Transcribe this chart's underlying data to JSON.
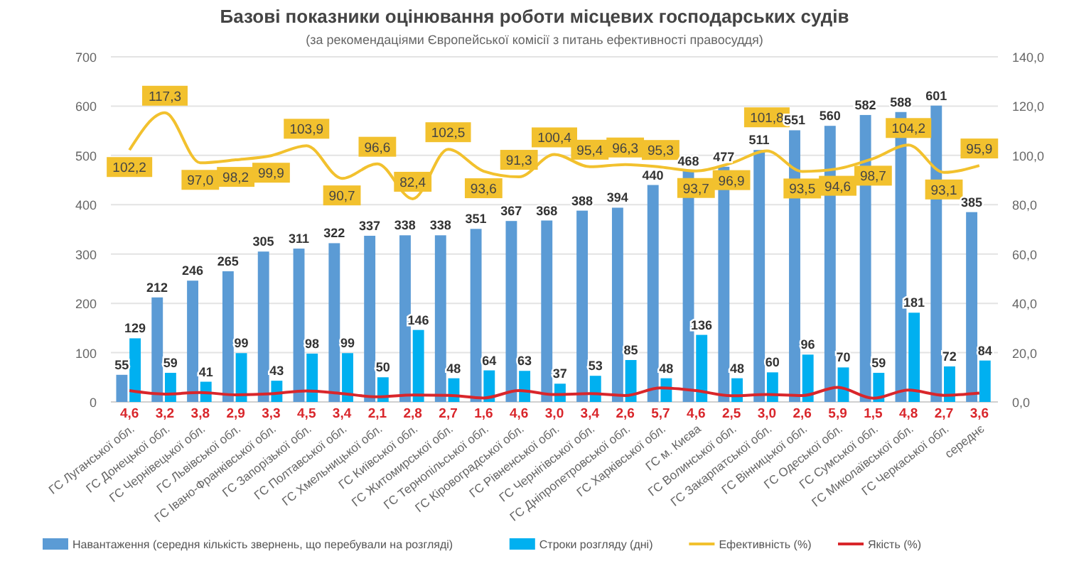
{
  "chart_data": {
    "type": "bar",
    "title": "Базові показники оцінювання роботи місцевих господарських судів",
    "subtitle": "(за рекомендаціями Європейської комісії з питань ефективності правосуддя)",
    "categories": [
      "ГС Луганської обл.",
      "ГС Донецької обл.",
      "ГС Чернівецької обл.",
      "ГС Львівської обл.",
      "ГС Івано-Франківської обл.",
      "ГС Запорізької обл.",
      "ГС Полтавської обл.",
      "ГС Хмельницької обл.",
      "ГС Київської обл.",
      "ГС Житомирської обл.",
      "ГС Тернопільської обл.",
      "ГС Кіровоградської обл.",
      "ГС Рівненської обл.",
      "ГС Чернігівської обл.",
      "ГС Дніпропетровської обл.",
      "ГС Харківської обл.",
      "ГС м. Києва",
      "ГС Волинської обл.",
      "ГС Закарпатської обл.",
      "ГС Вінницької обл.",
      "ГС Одеської обл.",
      "ГС Сумської обл.",
      "ГС Миколаївської обл.",
      "ГС Черкаської обл.",
      "середнє"
    ],
    "series": [
      {
        "name": "Навантаження (середня кількість звернень, що перебували на розгляді)",
        "color": "#5b9bd5",
        "values": [
          55,
          212,
          246,
          265,
          305,
          311,
          322,
          337,
          338,
          338,
          351,
          367,
          368,
          388,
          394,
          440,
          468,
          477,
          511,
          551,
          560,
          582,
          588,
          601,
          385
        ]
      },
      {
        "name": "Строки розгляду (дні)",
        "color": "#00b0f0",
        "values": [
          129,
          59,
          41,
          99,
          43,
          98,
          99,
          50,
          146,
          48,
          64,
          63,
          37,
          53,
          85,
          48,
          136,
          48,
          60,
          96,
          70,
          59,
          181,
          72,
          84
        ]
      },
      {
        "name": "Ефективність (%)",
        "color": "#f2c12e",
        "type": "line",
        "axis": "y2",
        "values": [
          102.2,
          117.3,
          97.0,
          98.2,
          99.9,
          103.9,
          90.7,
          96.6,
          82.4,
          102.5,
          93.6,
          91.3,
          100.4,
          95.4,
          96.3,
          95.3,
          93.7,
          96.9,
          101.8,
          93.5,
          94.6,
          98.7,
          104.2,
          93.1,
          95.9
        ],
        "value_labels": [
          "102,2",
          "117,3",
          "97,0",
          "98,2",
          "99,9",
          "103,9",
          "90,7",
          "96,6",
          "82,4",
          "102,5",
          "93,6",
          "91,3",
          "100,4",
          "95,4",
          "96,3",
          "95,3",
          "93,7",
          "96,9",
          "101,8",
          "93,5",
          "94,6",
          "98,7",
          "104,2",
          "93,1",
          "95,9"
        ]
      },
      {
        "name": "Якість (%)",
        "color": "#d9262b",
        "type": "line",
        "axis": "y2",
        "values": [
          4.6,
          3.2,
          3.8,
          2.9,
          3.3,
          4.5,
          3.4,
          2.1,
          2.8,
          2.7,
          1.6,
          4.6,
          3.0,
          3.4,
          2.6,
          5.7,
          4.6,
          2.5,
          3.0,
          2.6,
          5.9,
          1.5,
          4.8,
          2.7,
          3.6
        ],
        "value_labels": [
          "4,6",
          "3,2",
          "3,8",
          "2,9",
          "3,3",
          "4,5",
          "3,4",
          "2,1",
          "2,8",
          "2,7",
          "1,6",
          "4,6",
          "3,0",
          "3,4",
          "2,6",
          "5,7",
          "4,6",
          "2,5",
          "3,0",
          "2,6",
          "5,9",
          "1,5",
          "4,8",
          "2,7",
          "3,6"
        ]
      }
    ],
    "data_labels": true,
    "ylim": [
      0,
      700
    ],
    "yticks": [
      0,
      100,
      200,
      300,
      400,
      500,
      600,
      700
    ],
    "y2lim": [
      0,
      140
    ],
    "y2ticks": [
      {
        "value": 0,
        "label": "0,0"
      },
      {
        "value": 20,
        "label": "20,0"
      },
      {
        "value": 40,
        "label": "40,0"
      },
      {
        "value": 60,
        "label": "60,0"
      },
      {
        "value": 80,
        "label": "80,0"
      },
      {
        "value": 100,
        "label": "100,0"
      },
      {
        "value": 120,
        "label": "120,0"
      },
      {
        "value": 140,
        "label": "140,0"
      }
    ],
    "grid": "y",
    "legend": "bottom"
  }
}
